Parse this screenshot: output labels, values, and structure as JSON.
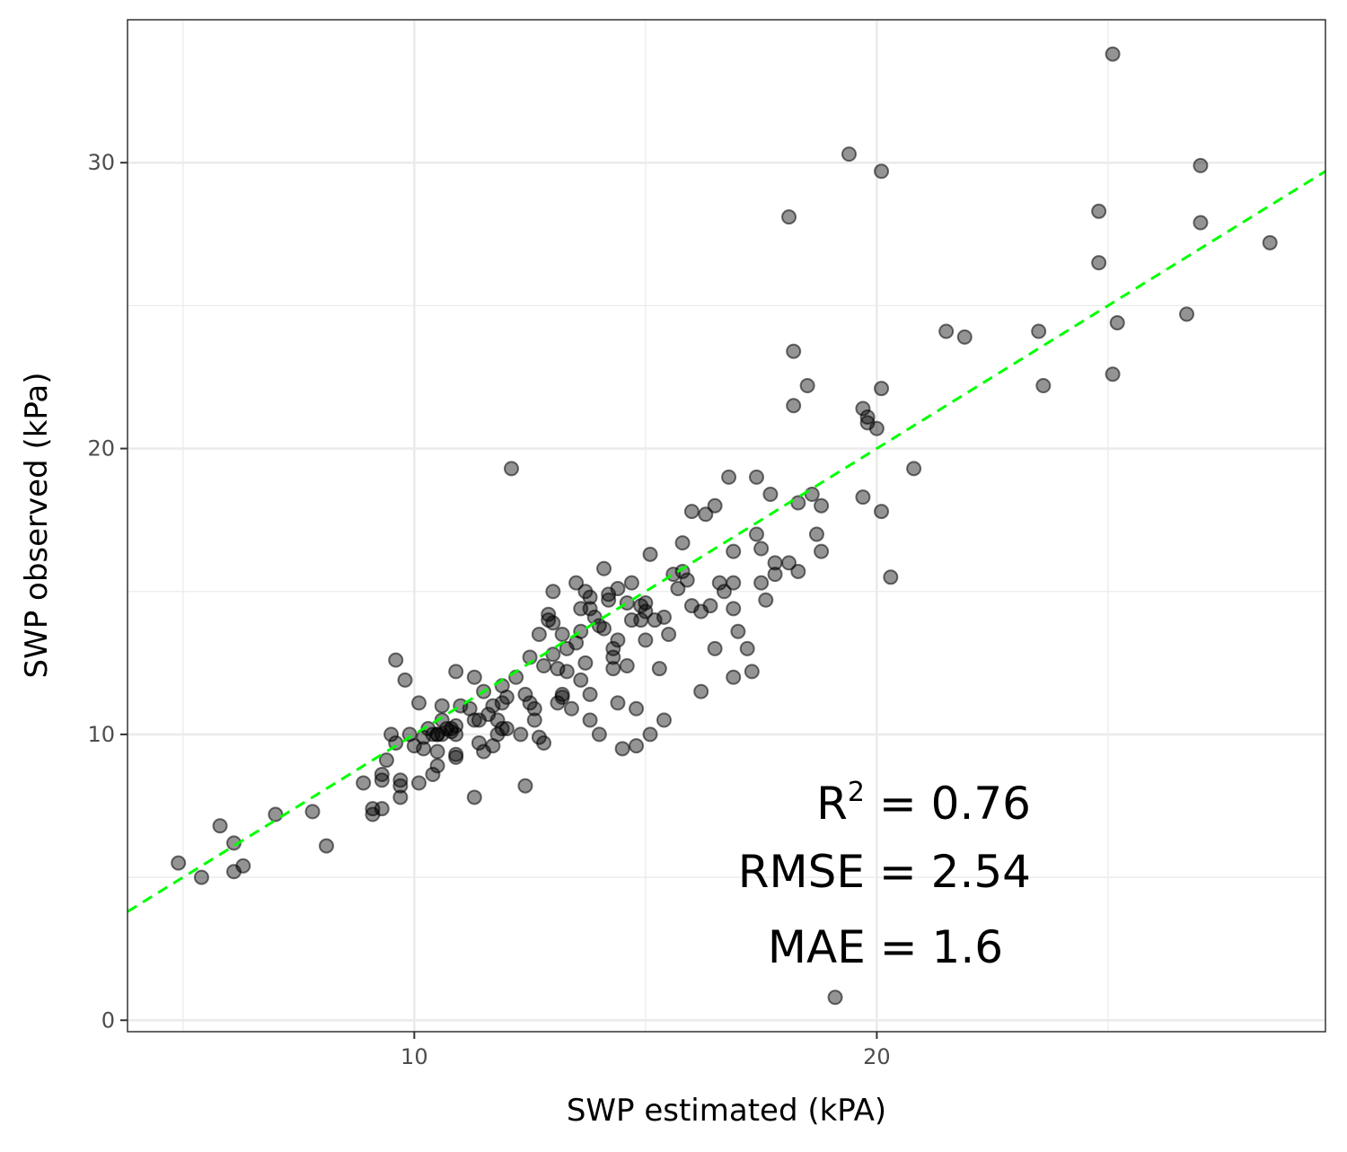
{
  "chart_data": {
    "type": "scatter",
    "xlabel": "SWP estimated (kPA)",
    "ylabel": "SWP observed (kPa)",
    "xlim": [
      3.8,
      29.7
    ],
    "ylim": [
      -0.4,
      35.0
    ],
    "xticks": [
      {
        "value": 10,
        "label": "10"
      },
      {
        "value": 20,
        "label": "20"
      }
    ],
    "yticks": [
      {
        "value": 0,
        "label": "0"
      },
      {
        "value": 10,
        "label": "10"
      },
      {
        "value": 20,
        "label": "20"
      },
      {
        "value": 30,
        "label": "30"
      }
    ],
    "grid": true,
    "reference_line": {
      "slope": 1,
      "intercept": 0,
      "color": "#00ff00",
      "style": "dashed"
    },
    "point_color": "#000000",
    "annotations": {
      "r2_label": "R",
      "r2_sup": "2",
      "r2_value": " = 0.76",
      "rmse": "RMSE = 2.54",
      "mae": "MAE = 1.6"
    },
    "points": [
      [
        4.9,
        5.5
      ],
      [
        5.4,
        5.0
      ],
      [
        5.8,
        6.8
      ],
      [
        6.1,
        6.2
      ],
      [
        6.1,
        5.2
      ],
      [
        6.3,
        5.4
      ],
      [
        7.0,
        7.2
      ],
      [
        7.8,
        7.3
      ],
      [
        8.1,
        6.1
      ],
      [
        8.9,
        8.3
      ],
      [
        9.1,
        7.2
      ],
      [
        9.1,
        7.4
      ],
      [
        9.3,
        8.4
      ],
      [
        9.3,
        8.6
      ],
      [
        9.3,
        7.4
      ],
      [
        9.4,
        9.1
      ],
      [
        9.5,
        10.0
      ],
      [
        9.6,
        12.6
      ],
      [
        9.6,
        9.7
      ],
      [
        9.7,
        8.4
      ],
      [
        9.7,
        7.8
      ],
      [
        9.7,
        8.2
      ],
      [
        9.8,
        11.9
      ],
      [
        9.9,
        10.0
      ],
      [
        10.0,
        9.6
      ],
      [
        10.1,
        8.3
      ],
      [
        10.1,
        11.1
      ],
      [
        10.2,
        9.9
      ],
      [
        10.2,
        9.5
      ],
      [
        10.3,
        10.2
      ],
      [
        10.4,
        10.0
      ],
      [
        10.4,
        8.6
      ],
      [
        10.5,
        10.0
      ],
      [
        10.5,
        8.9
      ],
      [
        10.5,
        9.4
      ],
      [
        10.6,
        10.5
      ],
      [
        10.8,
        10.1
      ],
      [
        10.9,
        10.0
      ],
      [
        10.5,
        10.0
      ],
      [
        10.6,
        11.0
      ],
      [
        10.6,
        10.0
      ],
      [
        10.7,
        10.2
      ],
      [
        10.8,
        10.2
      ],
      [
        10.9,
        9.3
      ],
      [
        10.9,
        9.2
      ],
      [
        10.9,
        10.3
      ],
      [
        10.9,
        12.2
      ],
      [
        11.0,
        11.0
      ],
      [
        11.2,
        10.9
      ],
      [
        11.3,
        7.8
      ],
      [
        11.3,
        10.5
      ],
      [
        11.3,
        12.0
      ],
      [
        11.4,
        10.5
      ],
      [
        11.4,
        9.7
      ],
      [
        11.5,
        9.4
      ],
      [
        11.5,
        11.5
      ],
      [
        11.6,
        10.7
      ],
      [
        11.7,
        11.0
      ],
      [
        11.7,
        9.6
      ],
      [
        11.8,
        10.0
      ],
      [
        11.9,
        11.7
      ],
      [
        11.9,
        11.1
      ],
      [
        11.9,
        10.2
      ],
      [
        11.8,
        10.5
      ],
      [
        12.0,
        10.2
      ],
      [
        12.0,
        11.3
      ],
      [
        12.1,
        19.3
      ],
      [
        12.2,
        12.0
      ],
      [
        12.3,
        10.0
      ],
      [
        12.4,
        8.2
      ],
      [
        12.4,
        11.4
      ],
      [
        12.5,
        11.1
      ],
      [
        12.5,
        12.7
      ],
      [
        12.6,
        10.9
      ],
      [
        12.6,
        10.5
      ],
      [
        12.7,
        9.9
      ],
      [
        12.7,
        13.5
      ],
      [
        12.8,
        9.7
      ],
      [
        12.8,
        12.4
      ],
      [
        12.9,
        14.2
      ],
      [
        12.9,
        14.0
      ],
      [
        13.0,
        15.0
      ],
      [
        13.0,
        12.8
      ],
      [
        13.0,
        13.9
      ],
      [
        13.1,
        11.1
      ],
      [
        13.1,
        12.3
      ],
      [
        13.2,
        11.4
      ],
      [
        13.2,
        13.5
      ],
      [
        13.2,
        11.3
      ],
      [
        13.3,
        12.2
      ],
      [
        13.3,
        13.0
      ],
      [
        13.4,
        10.9
      ],
      [
        13.5,
        15.3
      ],
      [
        13.5,
        13.2
      ],
      [
        13.6,
        11.9
      ],
      [
        13.6,
        14.4
      ],
      [
        13.6,
        13.6
      ],
      [
        13.7,
        12.5
      ],
      [
        13.7,
        15.0
      ],
      [
        13.8,
        14.8
      ],
      [
        13.8,
        14.4
      ],
      [
        13.8,
        11.4
      ],
      [
        13.8,
        10.5
      ],
      [
        13.9,
        14.1
      ],
      [
        14.0,
        13.8
      ],
      [
        14.0,
        10.0
      ],
      [
        14.1,
        13.7
      ],
      [
        14.1,
        15.8
      ],
      [
        14.2,
        14.7
      ],
      [
        14.2,
        14.9
      ],
      [
        14.3,
        13.0
      ],
      [
        14.3,
        12.3
      ],
      [
        14.3,
        12.7
      ],
      [
        14.4,
        13.3
      ],
      [
        14.4,
        15.1
      ],
      [
        14.4,
        11.1
      ],
      [
        14.5,
        9.5
      ],
      [
        14.6,
        12.4
      ],
      [
        14.6,
        14.6
      ],
      [
        14.7,
        14.0
      ],
      [
        14.7,
        15.3
      ],
      [
        14.8,
        9.6
      ],
      [
        14.8,
        10.9
      ],
      [
        14.9,
        14.0
      ],
      [
        14.9,
        14.5
      ],
      [
        15.0,
        14.3
      ],
      [
        15.0,
        14.6
      ],
      [
        15.0,
        13.3
      ],
      [
        15.1,
        10.0
      ],
      [
        15.1,
        16.3
      ],
      [
        15.2,
        14.0
      ],
      [
        15.3,
        12.3
      ],
      [
        15.4,
        10.5
      ],
      [
        15.4,
        14.1
      ],
      [
        15.5,
        13.5
      ],
      [
        15.6,
        15.6
      ],
      [
        15.7,
        15.1
      ],
      [
        15.8,
        16.7
      ],
      [
        15.8,
        15.7
      ],
      [
        15.9,
        15.4
      ],
      [
        16.0,
        17.8
      ],
      [
        16.0,
        14.5
      ],
      [
        16.2,
        11.5
      ],
      [
        16.2,
        14.3
      ],
      [
        16.3,
        17.7
      ],
      [
        16.4,
        14.5
      ],
      [
        16.5,
        13.0
      ],
      [
        16.5,
        18.0
      ],
      [
        16.6,
        15.3
      ],
      [
        16.7,
        15.0
      ],
      [
        16.8,
        19.0
      ],
      [
        16.9,
        16.4
      ],
      [
        16.9,
        15.3
      ],
      [
        16.9,
        14.4
      ],
      [
        16.9,
        12.0
      ],
      [
        17.0,
        13.6
      ],
      [
        17.2,
        13.0
      ],
      [
        17.3,
        12.2
      ],
      [
        17.4,
        19.0
      ],
      [
        17.4,
        17.0
      ],
      [
        17.5,
        16.5
      ],
      [
        17.5,
        15.3
      ],
      [
        17.6,
        14.7
      ],
      [
        17.7,
        18.4
      ],
      [
        17.8,
        16.0
      ],
      [
        17.8,
        15.6
      ],
      [
        18.1,
        16.0
      ],
      [
        18.2,
        21.5
      ],
      [
        18.3,
        18.1
      ],
      [
        18.3,
        15.7
      ],
      [
        18.1,
        28.1
      ],
      [
        18.2,
        23.4
      ],
      [
        18.5,
        22.2
      ],
      [
        18.6,
        18.4
      ],
      [
        18.7,
        17.0
      ],
      [
        18.8,
        16.4
      ],
      [
        18.8,
        18.0
      ],
      [
        19.1,
        0.8
      ],
      [
        19.4,
        30.3
      ],
      [
        19.7,
        21.4
      ],
      [
        19.7,
        18.3
      ],
      [
        19.8,
        20.9
      ],
      [
        19.8,
        21.1
      ],
      [
        20.0,
        20.7
      ],
      [
        20.1,
        29.7
      ],
      [
        20.1,
        22.1
      ],
      [
        20.1,
        17.8
      ],
      [
        20.3,
        15.5
      ],
      [
        20.8,
        19.3
      ],
      [
        21.5,
        24.1
      ],
      [
        21.9,
        23.9
      ],
      [
        23.5,
        24.1
      ],
      [
        23.6,
        22.2
      ],
      [
        24.8,
        28.3
      ],
      [
        24.8,
        26.5
      ],
      [
        25.1,
        33.8
      ],
      [
        25.1,
        22.6
      ],
      [
        25.2,
        24.4
      ],
      [
        26.7,
        24.7
      ],
      [
        27.0,
        29.9
      ],
      [
        27.0,
        27.9
      ],
      [
        28.5,
        27.2
      ]
    ]
  }
}
